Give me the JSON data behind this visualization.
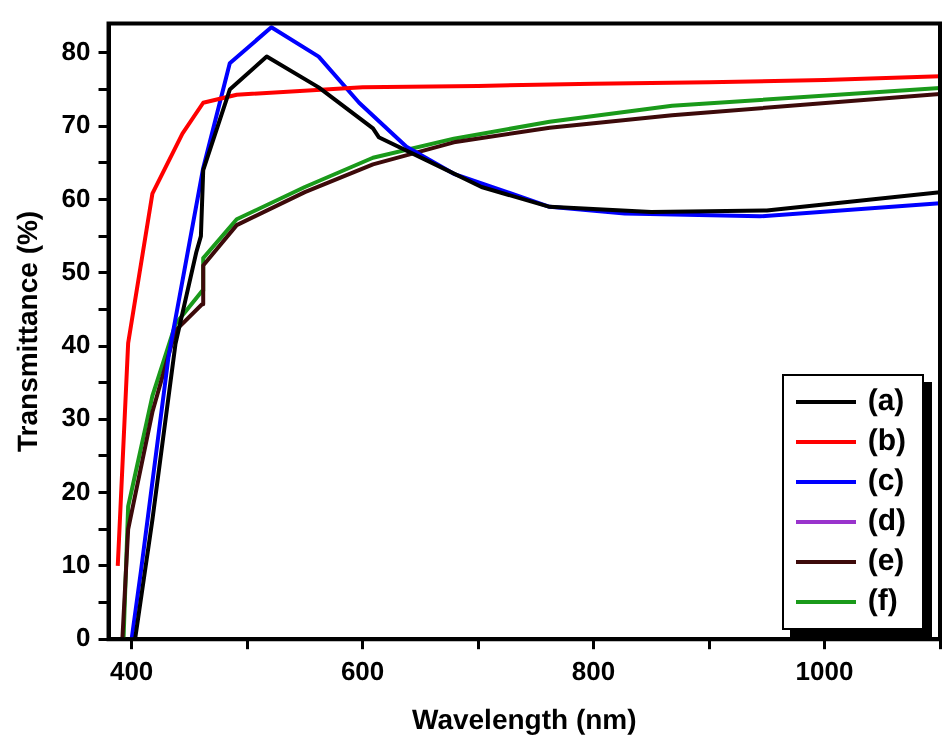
{
  "chart_data": {
    "type": "line",
    "xlabel": "Wavelength (nm)",
    "ylabel": "Transmittance (%)",
    "xlim": [
      380,
      1100
    ],
    "ylim": [
      0,
      84
    ],
    "xticks": [
      400,
      {
        "value": 500,
        "label": null
      },
      600,
      {
        "value": 700,
        "label": null
      },
      800,
      {
        "value": 900,
        "label": null
      },
      1000,
      {
        "value": 1100,
        "label": null
      }
    ],
    "yticks": [
      0,
      {
        "value": 5,
        "label": null
      },
      10,
      {
        "value": 15,
        "label": null
      },
      20,
      {
        "value": 25,
        "label": null
      },
      30,
      {
        "value": 35,
        "label": null
      },
      40,
      {
        "value": 45,
        "label": null
      },
      50,
      {
        "value": 55,
        "label": null
      },
      60,
      {
        "value": 65,
        "label": null
      },
      70,
      {
        "value": 75,
        "label": null
      },
      80
    ],
    "grid": false,
    "legend": "bottom right",
    "marker": "none",
    "line_style": "solid",
    "series": [
      {
        "name": "(a)",
        "color": "#000000",
        "x": [
          403,
          418,
          438,
          456,
          460,
          462,
          485,
          517,
          562,
          609,
          614,
          656,
          703,
          762,
          850,
          950,
          1100
        ],
        "values": [
          0,
          16.3,
          40.3,
          52.8,
          55,
          64,
          75,
          79.5,
          75.3,
          69.7,
          68.5,
          65.3,
          61.7,
          59,
          58.3,
          58.5,
          61
        ]
      },
      {
        "name": "(b)",
        "color": "#ff0000",
        "x": [
          388,
          397,
          418,
          444,
          462,
          491,
          600,
          700,
          800,
          900,
          1000,
          1100
        ],
        "values": [
          10,
          40.4,
          60.8,
          69,
          73.2,
          74.3,
          75.3,
          75.5,
          75.8,
          76,
          76.3,
          76.8
        ]
      },
      {
        "name": "(c)",
        "color": "#0000ff",
        "x": [
          400,
          408,
          432,
          462,
          485,
          521,
          562,
          597,
          638,
          679,
          762,
          827,
          944,
          1100
        ],
        "values": [
          0,
          9.2,
          38.6,
          64.3,
          78.6,
          83.5,
          79.5,
          73.2,
          67.2,
          63.5,
          59,
          58.1,
          57.7,
          59.5
        ]
      },
      {
        "name": "(d)",
        "color": "#9933cc"
      },
      {
        "name": "(e)",
        "color": "#3d0a0a",
        "x": [
          392,
          397,
          418,
          438,
          461,
          462,
          491,
          550,
          609,
          679,
          762,
          868,
          1100
        ],
        "values": [
          0,
          15,
          31,
          42.1,
          45.7,
          51,
          56.5,
          61,
          64.8,
          67.8,
          69.8,
          71.5,
          74.4
        ]
      },
      {
        "name": "(f)",
        "color": "#1a9a1a",
        "x": [
          393,
          397,
          418,
          438,
          461,
          462,
          491,
          550,
          609,
          679,
          762,
          868,
          1100
        ],
        "values": [
          0,
          18.1,
          33.2,
          43,
          47.5,
          52,
          57.3,
          61.7,
          65.7,
          68.3,
          70.6,
          72.8,
          75.2
        ]
      }
    ]
  }
}
